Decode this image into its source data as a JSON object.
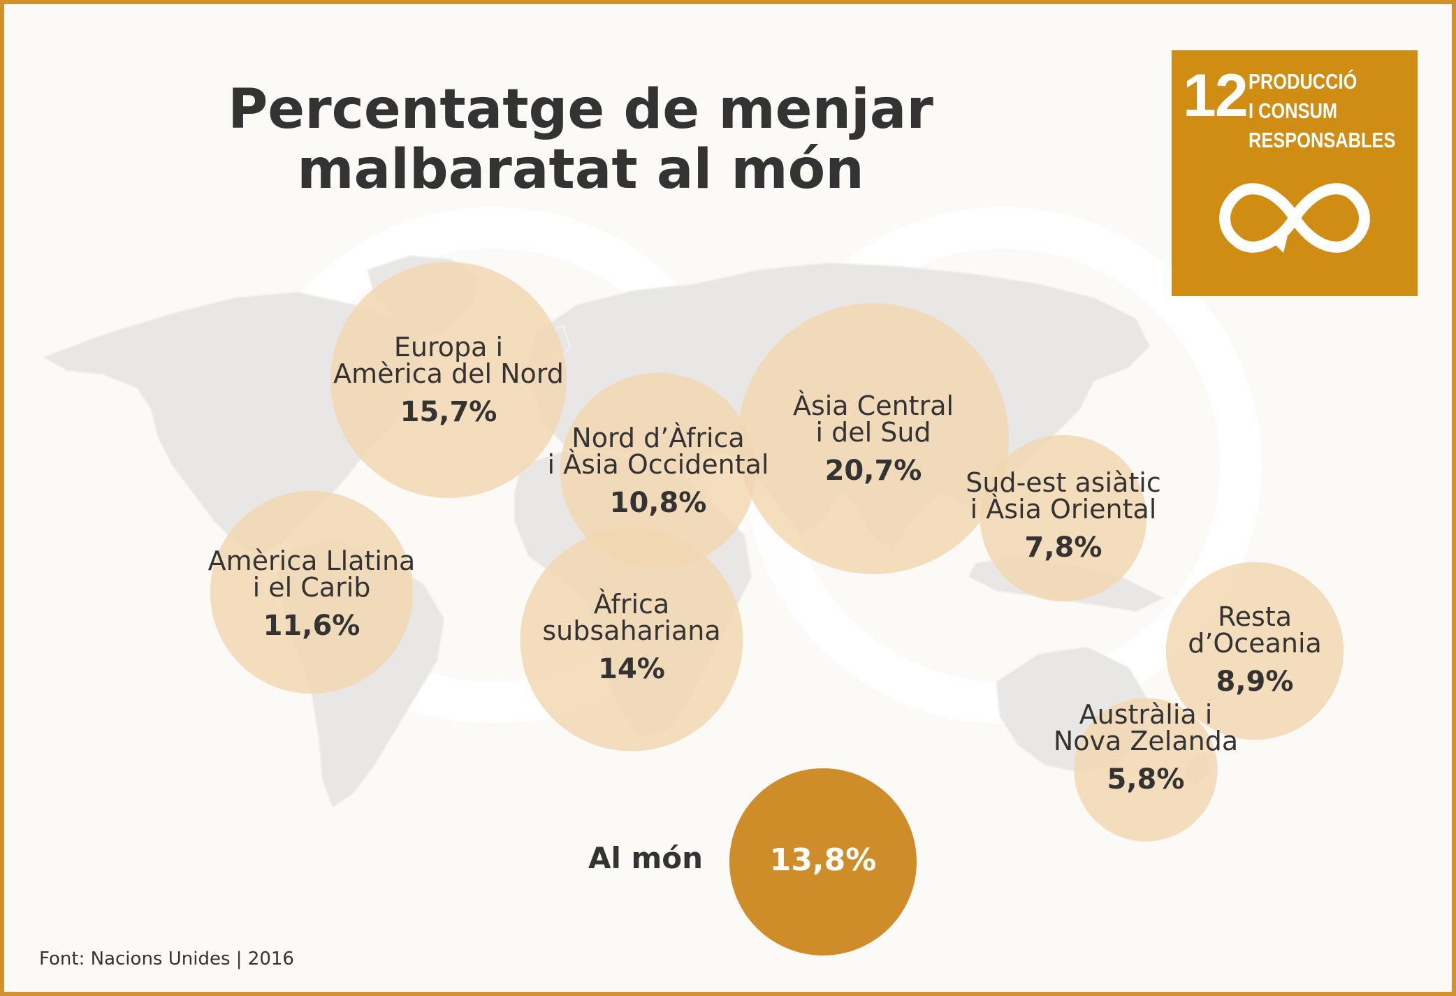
{
  "title_lines": [
    "Percentatge de menjar",
    "malbaratat al món"
  ],
  "badge": {
    "number": "12",
    "text_lines": [
      "PRODUCCIÓ",
      "I CONSUM",
      "RESPONSABLES"
    ],
    "icon": "infinity-loop-icon",
    "color": "#cf8d13"
  },
  "chart_data": {
    "type": "bubble-map",
    "title": "Percentatge de menjar malbaratat al món",
    "unit": "%",
    "series": [
      {
        "name_lines": [
          "Europa i",
          "Amèrica del Nord"
        ],
        "label": "15,7%",
        "value": 15.7
      },
      {
        "name_lines": [
          "Nord d’Àfrica",
          "i Àsia Occidental"
        ],
        "label": "10,8%",
        "value": 10.8
      },
      {
        "name_lines": [
          "Àsia Central",
          "i del Sud"
        ],
        "label": "20,7%",
        "value": 20.7
      },
      {
        "name_lines": [
          "Sud-est asiàtic",
          "i Àsia Oriental"
        ],
        "label": "7,8%",
        "value": 7.8
      },
      {
        "name_lines": [
          "Amèrica Llatina",
          "i el Carib"
        ],
        "label": "11,6%",
        "value": 11.6
      },
      {
        "name_lines": [
          "Àfrica",
          "subsahariana"
        ],
        "label": "14%",
        "value": 14.0
      },
      {
        "name_lines": [
          "Resta",
          "d’Oceania"
        ],
        "label": "8,9%",
        "value": 8.9
      },
      {
        "name_lines": [
          "Austràlia i",
          "Nova Zelanda"
        ],
        "label": "5,8%",
        "value": 5.8
      }
    ],
    "world": {
      "name": "Al món",
      "label": "13,8%",
      "value": 13.8
    },
    "colors": {
      "bubble": "#f1d7b0",
      "world": "#cf8d2a",
      "map": "#e9e7e5",
      "frame": "#cf922e"
    }
  },
  "source": "Font: Nacions Unides | 2016"
}
